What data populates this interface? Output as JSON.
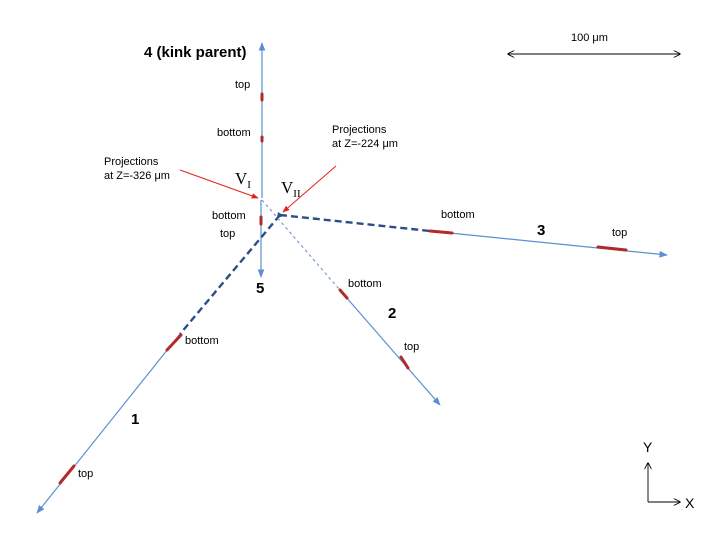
{
  "scale_bar": {
    "label": "100 μm"
  },
  "tracks": {
    "t1": {
      "number": "1",
      "label_top": "top",
      "label_bottom": "bottom"
    },
    "t2": {
      "number": "2",
      "label_top": "top",
      "label_bottom": "bottom"
    },
    "t3": {
      "number": "3",
      "label_top": "top",
      "label_bottom": "bottom"
    },
    "t4": {
      "number": "4 (kink parent)",
      "label_top": "top",
      "label_bottom": "bottom"
    },
    "t5": {
      "number": "5",
      "label_top": "top",
      "label_bottom": "bottom"
    }
  },
  "vertices": {
    "v1": {
      "letter": "V",
      "sub": "I"
    },
    "v2": {
      "letter": "V",
      "sub": "II"
    }
  },
  "projections": {
    "left": {
      "line1": "Projections",
      "line2": "at Z=-326 μm"
    },
    "right": {
      "line1": "Projections",
      "line2": "at Z=-224 μm"
    }
  },
  "axes": {
    "y": "Y",
    "x": "X"
  }
}
